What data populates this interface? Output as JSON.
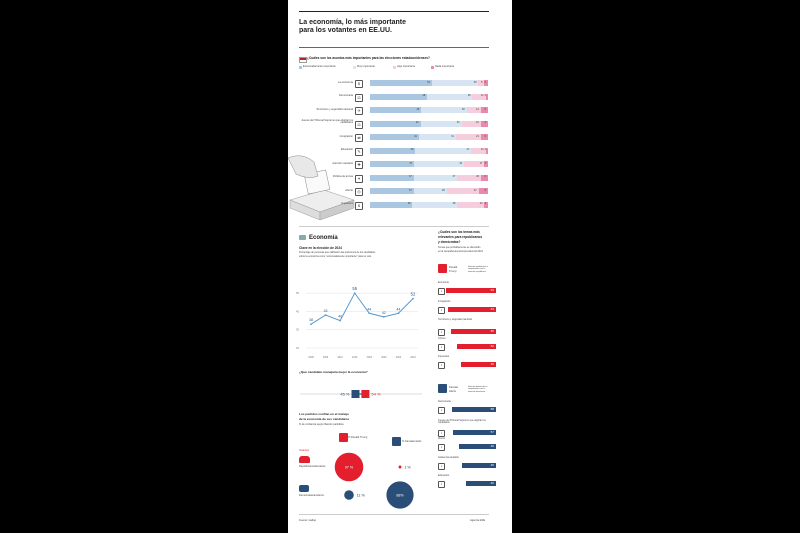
{
  "title_line1": "La economía, lo más importante",
  "title_line2": "para los votantes en EE.UU.",
  "survey": {
    "question": "¿Cuáles son los asuntos más importantes para las elecciones estadounidenses?",
    "legend": [
      "Extremadamente importante",
      "Muy importante",
      "Algo importante",
      "Nada importante"
    ],
    "colors": [
      "#a9c7e1",
      "#d6e5f1",
      "#f6cddd",
      "#e889ae"
    ]
  },
  "chart_data": [
    {
      "type": "bar",
      "stacked": true,
      "orientation": "horizontal",
      "title": "¿Cuáles son los asuntos más importantes para las elecciones estadounidenses?",
      "series_names": [
        "Extremadamente importante",
        "Muy importante",
        "Algo importante",
        "Nada importante"
      ],
      "categories": [
        "La economía",
        "Democracia",
        "Terrorismo y seguridad nacional",
        "Jueces del Tribunal Supremo que eligirán los candidatos",
        "Inmigración",
        "Educación",
        "Atención sanitaria",
        "Política de armas",
        "Aborto",
        "Impuestos"
      ],
      "values": [
        [
          52,
          39,
          5,
          3
        ],
        [
          48,
          38,
          11,
          2
        ],
        [
          43,
          38,
          12,
          6
        ],
        [
          42,
          34,
          16,
          6
        ],
        [
          41,
          31,
          21,
          6
        ],
        [
          38,
          47,
          12,
          2
        ],
        [
          37,
          42,
          17,
          3
        ],
        [
          37,
          37,
          20,
          6
        ],
        [
          37,
          28,
          27,
          8
        ],
        [
          36,
          38,
          23,
          3
        ]
      ]
    },
    {
      "type": "line",
      "title": "Clave en la elección de 2024",
      "subtitle": "Porcentaje de personas que calificaron las posiciones de los candidatos sobre la economía como \"extremadamente importante\" para su voto",
      "x": [
        "2008",
        "2009",
        "2012",
        "2016",
        "2018",
        "2020",
        "2022",
        "2024"
      ],
      "y": [
        38,
        43,
        40,
        55,
        44,
        42,
        44,
        52
      ],
      "ylim": [
        25,
        60
      ],
      "yticks": [
        "55",
        "45",
        "35",
        "25"
      ]
    },
    {
      "type": "bar",
      "title": "Temas más relevantes para republicanos (Donald Trump)",
      "categories": [
        "Economía",
        "Inmigración",
        "Terrorismo y seguridad nacional",
        "Crimen",
        "Impuestos"
      ],
      "values": [
        66,
        63,
        60,
        52,
        46
      ]
    },
    {
      "type": "bar",
      "title": "Temas más relevantes para demócratas (Kamala Harris)",
      "categories": [
        "Democracia",
        "Jueces del Tribunal Supremo que eligirán los candidatos",
        "Aborto",
        "Asistencia sanitaria",
        "Educación"
      ],
      "values": [
        58,
        57,
        49,
        45,
        40
      ]
    }
  ],
  "economia": {
    "heading": "Economía",
    "chart_title": "Clave en la elección de 2024",
    "chart_sub1": "Porcentaje de personas que calificaron las posiciones de los candidatos",
    "chart_sub2": "sobre la economía como \"extremadamente importante\" para su voto"
  },
  "who": {
    "question": "¿Qué candidato manejaría mejor la economía?",
    "harris_pct": "45 %",
    "trump_pct": "54 %",
    "harris_value": 45,
    "trump_value": 54
  },
  "parties": {
    "title1": "Los partidos confían en el manejo",
    "title2": "de la economía de sus candidatos",
    "sub": "% de confianza según filiación partidista",
    "trump_label": "% Donald Trump",
    "harris_label": "% Kamala Harris",
    "votantes": "Votantes",
    "rep": "Republicanos/tenderos",
    "dem": "Demócratas/tenderos",
    "rep_trump": "97 %",
    "rep_harris": "1 %",
    "dem_trump": "11 %",
    "dem_harris": "88%",
    "rep_trump_value": 97,
    "rep_harris_value": 1,
    "dem_trump_value": 11,
    "dem_harris_value": 88
  },
  "right": {
    "q1": "¿Cuáles son los temas más",
    "q2": "relevantes para republicanos",
    "q3": "y demócratas?",
    "sub1": "Temas que probablemente se discutirán",
    "sub2": "en la campaña electoral presidencial 2024",
    "trump_name1": "Donald",
    "trump_name2": "Trump",
    "trump_note": "Votantes republicanos o simpatizantes con la intención republicana",
    "harris_name1": "Kamala",
    "harris_name2": "Harris",
    "harris_note": "Votantes demócratas o simpatizantes con la intención demócrata"
  },
  "footer": {
    "source": "Fuente: Gallup",
    "agency": "Agencia EFE"
  }
}
